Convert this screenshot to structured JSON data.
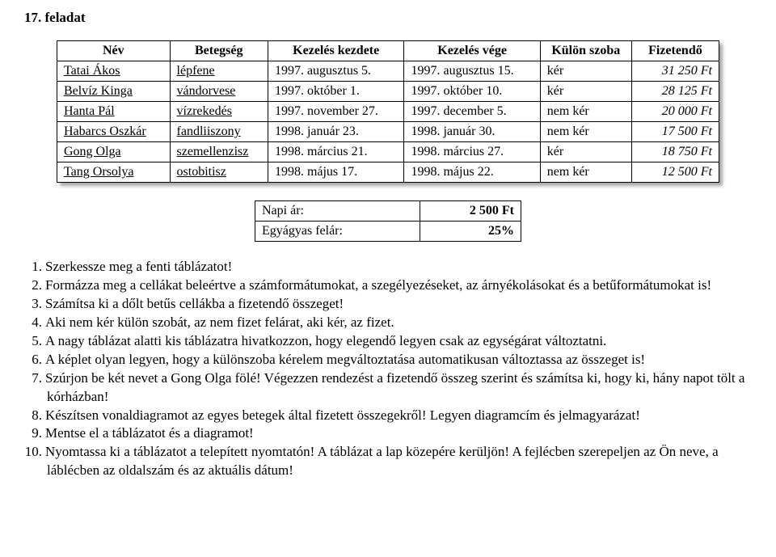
{
  "title": "17. feladat",
  "columns": [
    "Név",
    "Betegség",
    "Kezelés kezdete",
    "Kezelés vége",
    "Külön szoba",
    "Fizetendő"
  ],
  "rows": [
    {
      "name": "Tatai Ákos",
      "disease": "lépfene",
      "start": "1997. augusztus 5.",
      "end": "1997. augusztus 15.",
      "room": "kér",
      "pay": "31 250 Ft"
    },
    {
      "name": "Belvíz Kinga",
      "disease": "vándorvese",
      "start": "1997. október 1.",
      "end": "1997. október 10.",
      "room": "kér",
      "pay": "28 125 Ft"
    },
    {
      "name": "Hanta Pál",
      "disease": "vízrekedés",
      "start": "1997. november 27.",
      "end": "1997. december 5.",
      "room": "nem kér",
      "pay": "20 000 Ft"
    },
    {
      "name": "Habarcs Oszkár",
      "disease": "fandliiszony",
      "start": "1998. január 23.",
      "end": "1998. január 30.",
      "room": "nem kér",
      "pay": "17 500 Ft"
    },
    {
      "name": "Gong Olga",
      "disease": "szemellenzisz",
      "start": "1998. március 21.",
      "end": "1998. március 27.",
      "room": "kér",
      "pay": "18 750 Ft"
    },
    {
      "name": "Tang Orsolya",
      "disease": "ostobitisz",
      "start": "1998. május 17.",
      "end": "1998. május 22.",
      "room": "nem kér",
      "pay": "12 500 Ft"
    }
  ],
  "small": {
    "r1l": "Napi ár:",
    "r1v": "2 500 Ft",
    "r2l": "Egyágyas felár:",
    "r2v": "25%"
  },
  "tasks": [
    "Szerkessze meg a fenti táblázatot!",
    "Formázza meg a cellákat beleértve a számformátumokat, a szegélyezéseket, az árnyékolásokat és a betűformátumokat is!",
    "Számítsa ki a dőlt betűs cellákba a fizetendő összeget!",
    "Aki nem kér külön szobát, az nem fizet felárat, aki kér, az fizet.",
    "A nagy táblázat alatti kis táblázatra hivatkozzon, hogy elegendő legyen csak az egységárat változtatni.",
    "A képlet olyan legyen, hogy a különszoba kérelem megváltoztatása automatikusan változtassa az összeget is!",
    "Szúrjon be két nevet a Gong Olga fölé! Végezzen rendezést a fizetendő összeg szerint és számítsa ki, hogy ki, hány napot tölt a kórházban!",
    "Készítsen vonaldiagramot az egyes betegek által fizetett összegekről! Legyen diagramcím és jelmagyarázat!",
    "Mentse el a táblázatot és a diagramot!",
    "Nyomtassa ki a táblázatot a telepített nyomtatón! A táblázat a lap közepére kerüljön! A fejlécben szerepeljen az Ön neve, a láblécben az oldalszám és az aktuális dátum!"
  ]
}
